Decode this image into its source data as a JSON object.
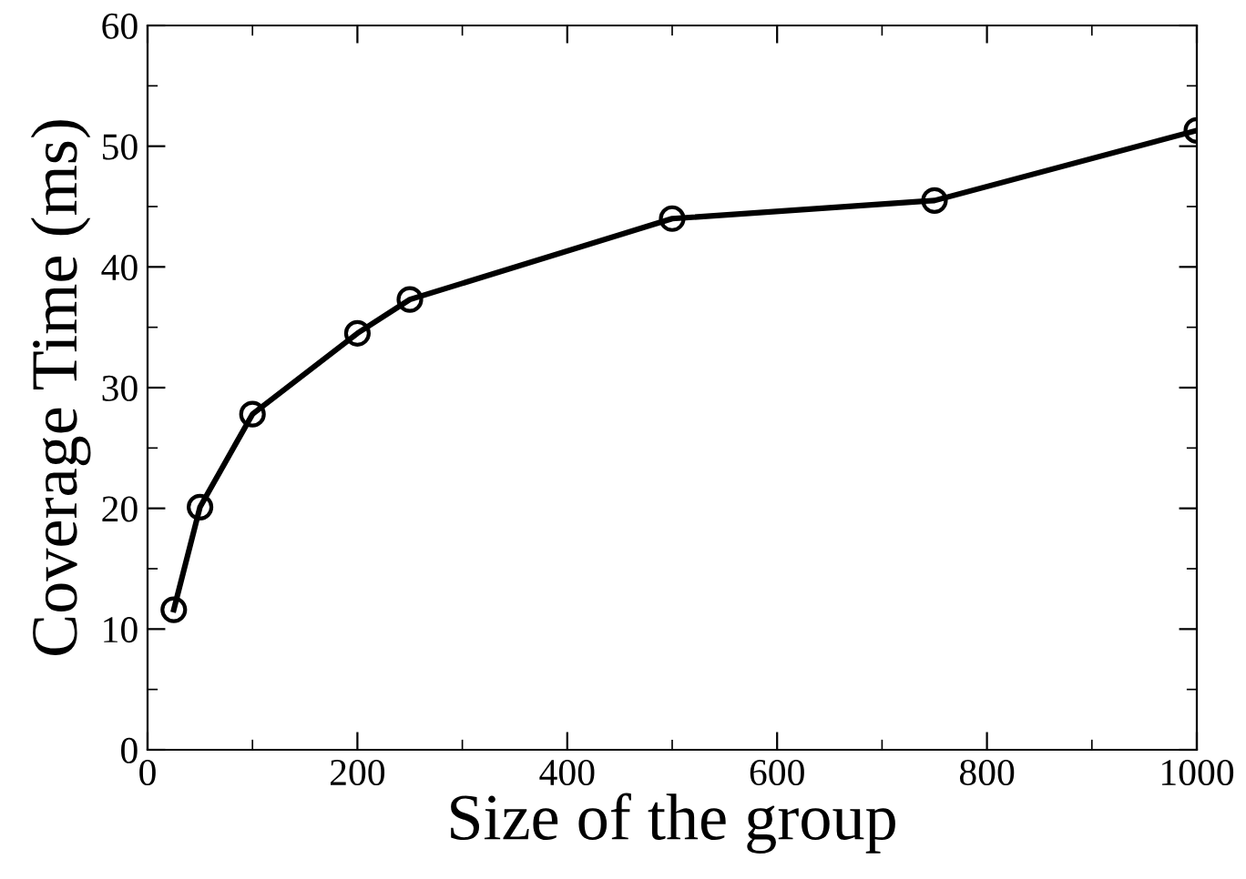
{
  "chart_data": {
    "type": "line",
    "xlabel": "Size of the group",
    "ylabel": "Coverage Time (ms)",
    "x": [
      25,
      50,
      100,
      200,
      250,
      500,
      750,
      1000
    ],
    "series": [
      {
        "color": "#000000",
        "values": [
          11.6,
          20.1,
          27.8,
          34.5,
          37.3,
          44.0,
          45.5,
          51.3
        ]
      }
    ],
    "xlim": [
      0,
      1000
    ],
    "xticks": [
      0,
      200,
      400,
      600,
      800,
      1000
    ],
    "ylim": [
      0,
      60
    ],
    "yticks": [
      0,
      10,
      20,
      30,
      40,
      50,
      60
    ],
    "marker": "circle",
    "line_style": "solid",
    "grid": false,
    "legend": false
  }
}
